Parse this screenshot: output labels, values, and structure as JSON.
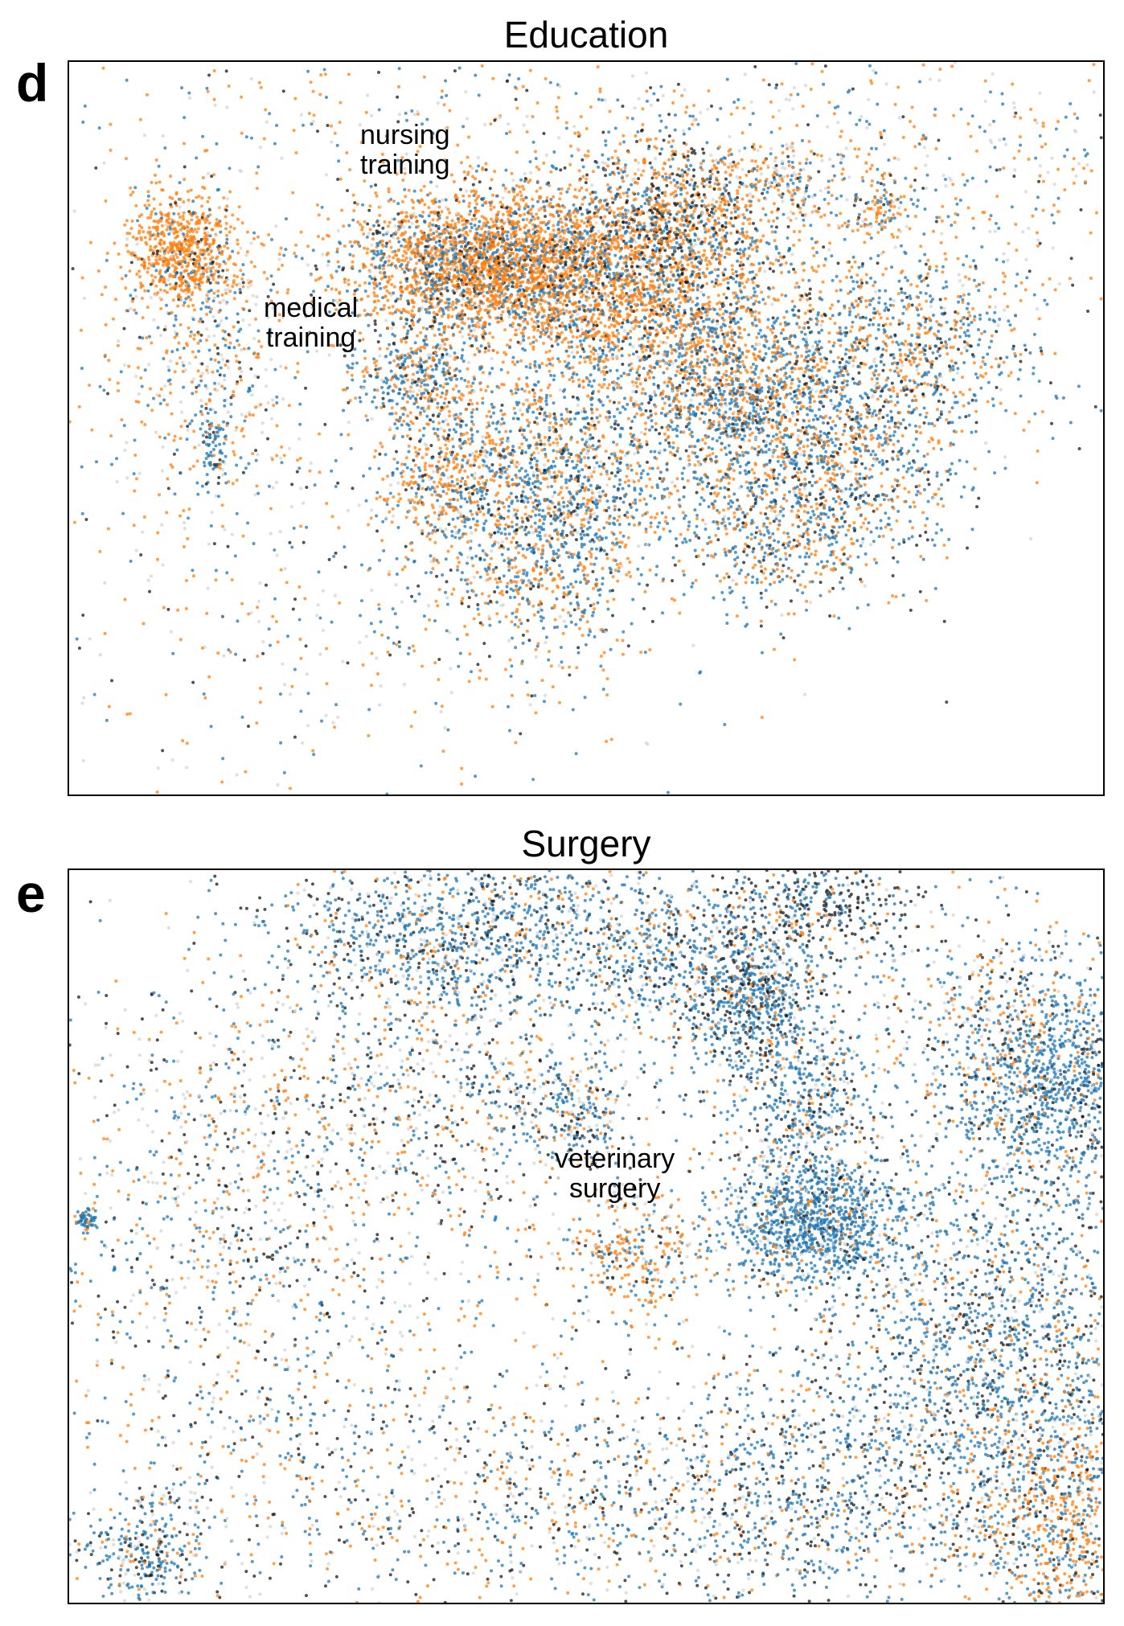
{
  "colors": {
    "orange": "#ff7f0e",
    "blue": "#1f77b4",
    "black": "#1a1a1a",
    "gray": "#d3d3d3"
  },
  "chart_data": [
    {
      "type": "scatter",
      "panel_label": "d",
      "title": "Education",
      "xlabel": "",
      "ylabel": "",
      "axis_ticks": "none",
      "grid": false,
      "legend": "none",
      "series_colors": [
        "#ff7f0e",
        "#1f77b4",
        "#1a1a1a",
        "#d3d3d3"
      ],
      "annotations": [
        {
          "line1": "nursing",
          "line2": "training"
        },
        {
          "line1": "medical",
          "line2": "training"
        }
      ]
    },
    {
      "type": "scatter",
      "panel_label": "e",
      "title": "Surgery",
      "xlabel": "",
      "ylabel": "",
      "axis_ticks": "none",
      "grid": false,
      "legend": "none",
      "series_colors": [
        "#ff7f0e",
        "#1f77b4",
        "#1a1a1a",
        "#d3d3d3"
      ],
      "annotations": [
        {
          "line1": "veterinary",
          "line2": "surgery"
        }
      ]
    }
  ]
}
